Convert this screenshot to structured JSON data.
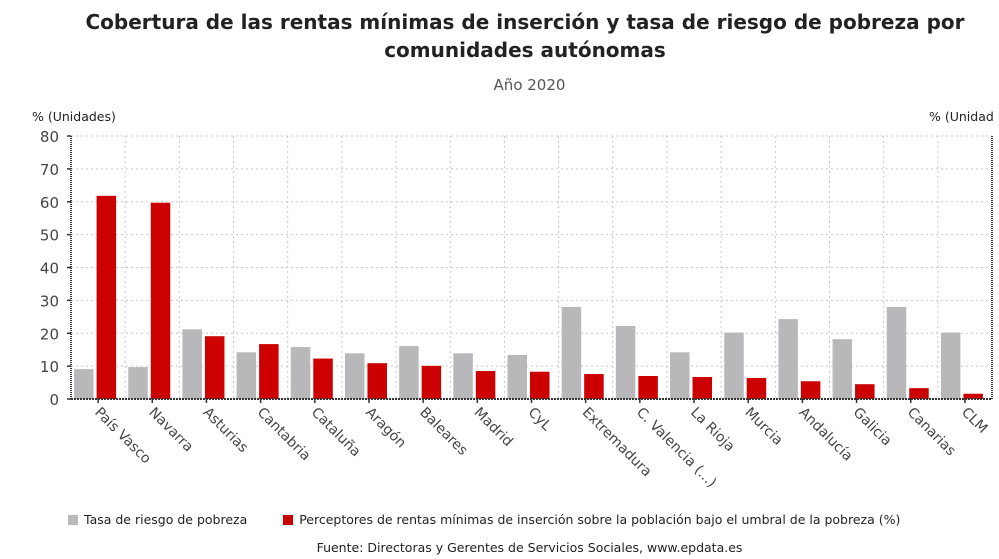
{
  "chart_data": {
    "type": "bar",
    "title": "Cobertura de las rentas mínimas de inserción y tasa de riesgo de pobreza por comunidades autónomas",
    "subtitle": "Año 2020",
    "ylabel_left": "% (Unidades)",
    "ylabel_right": "% (Unidad",
    "xlabel": "",
    "ylim": [
      0,
      80
    ],
    "yticks": [
      0,
      10,
      20,
      30,
      40,
      50,
      60,
      70,
      80
    ],
    "grid": true,
    "legend_position": "bottom",
    "categories": [
      "País Vasco",
      "Navarra",
      "Asturias",
      "Cantabria",
      "Cataluña",
      "Aragón",
      "Baleares",
      "Madrid",
      "CyL",
      "Extremadura",
      "C. Valencia (...)",
      "La Rioja",
      "Murcia",
      "Andalucía",
      "Galicia",
      "Canarias",
      "CLM"
    ],
    "series": [
      {
        "name": "Tasa de riesgo de pobreza",
        "color": "#b8b8bb",
        "values": [
          9.1,
          9.7,
          21.2,
          14.2,
          15.8,
          13.9,
          16.1,
          13.9,
          13.4,
          28.0,
          22.2,
          14.2,
          20.2,
          24.3,
          18.2,
          28.0,
          20.2
        ]
      },
      {
        "name": "Perceptores de rentas mínimas de inserción sobre la población bajo el umbral de la pobreza (%)",
        "color": "#cc0000",
        "values": [
          61.8,
          59.7,
          19.1,
          16.7,
          12.3,
          10.9,
          10.1,
          8.5,
          8.3,
          7.6,
          7.0,
          6.7,
          6.4,
          5.4,
          4.5,
          3.3,
          1.6
        ]
      }
    ],
    "source": "Fuente: Directoras y Gerentes de Servicios Sociales, www.epdata.es"
  }
}
